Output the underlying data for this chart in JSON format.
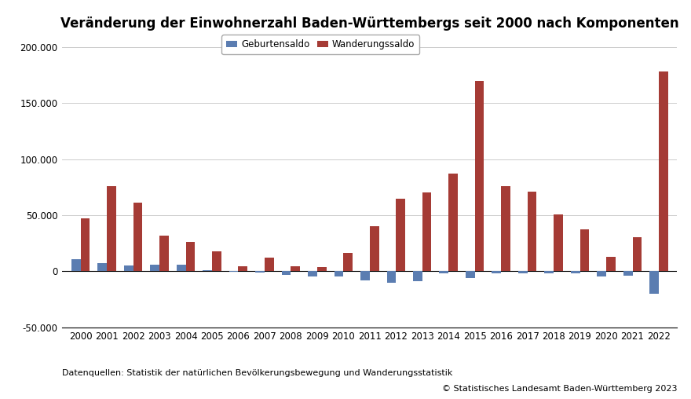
{
  "years": [
    2000,
    2001,
    2002,
    2003,
    2004,
    2005,
    2006,
    2007,
    2008,
    2009,
    2010,
    2011,
    2012,
    2013,
    2014,
    2015,
    2016,
    2017,
    2018,
    2019,
    2020,
    2021,
    2022
  ],
  "geburtensaldo": [
    11000,
    7000,
    5000,
    5500,
    5500,
    1000,
    -500,
    -1000,
    -3000,
    -5000,
    -5000,
    -8000,
    -10000,
    -9000,
    -2000,
    -6000,
    -2000,
    -2000,
    -2000,
    -2000,
    -5000,
    -4000,
    -20000
  ],
  "wanderungssaldo": [
    47000,
    76000,
    61000,
    32000,
    26000,
    18000,
    4500,
    12000,
    4500,
    4000,
    16000,
    40000,
    65000,
    70000,
    87000,
    170000,
    76000,
    71000,
    51000,
    37000,
    13000,
    30000,
    178000
  ],
  "title": "Veränderung der Einwohnerzahl Baden-Württembergs seit 2000 nach Komponenten",
  "legend_geburt": "Geburtensaldo",
  "legend_wander": "Wanderungssaldo",
  "color_geburt": "#5B7DB1",
  "color_wander": "#A53B35",
  "ylim_min": -50000,
  "ylim_max": 210000,
  "yticks": [
    -50000,
    0,
    50000,
    100000,
    150000,
    200000
  ],
  "ytick_labels": [
    "-50.000",
    "0",
    "50.000",
    "100.000",
    "150.000",
    "200.000"
  ],
  "bg_color": "#FFFFFF",
  "grid_color": "#CCCCCC",
  "footnote": "Datenquellen: Statistik der natürlichen Bevölkerungsbewegung und Wanderungsstatistik",
  "copyright": "© Statistisches Landesamt Baden-Württemberg 2023",
  "title_fontsize": 12,
  "tick_fontsize": 8.5,
  "bar_width": 0.35
}
